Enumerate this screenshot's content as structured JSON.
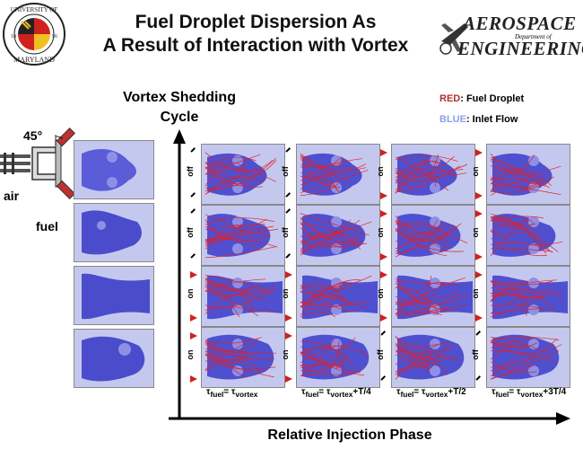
{
  "header": {
    "title_line1": "Fuel Droplet Dispersion As",
    "title_line2": "A Result of Interaction with Vortex"
  },
  "umd_logo": {
    "top_text": "UNIVERSITY OF",
    "bottom_text": "MARYLAND",
    "year_left": "18",
    "year_right": "56"
  },
  "ae_logo": {
    "line1": "AEROSPACE",
    "dept": "Department of",
    "line2": "ENGINEERING"
  },
  "legend": {
    "red_key": "RED",
    "red_desc": ": Fuel Droplet",
    "blue_key": "BLUE",
    "blue_desc": ": Inlet Flow",
    "red_color": "#b03030",
    "blue_color": "#8aa0e8"
  },
  "vortex_label": {
    "line1": "Vortex Shedding",
    "line2": "Cycle"
  },
  "injector": {
    "angle": "45°",
    "air": "air",
    "fuel": "fuel"
  },
  "x_axis_label": "Relative Injection Phase",
  "grid": {
    "rows": [
      [
        "off",
        "off",
        "on",
        "on"
      ],
      [
        "off",
        "off",
        "on",
        "on"
      ],
      [
        "on",
        "on",
        "on",
        "on"
      ],
      [
        "on",
        "on",
        "off",
        "off"
      ]
    ]
  },
  "columns": [
    {
      "sub": "fuel",
      "eq": "=",
      "sub2": "vortex",
      "suffix": ""
    },
    {
      "sub": "fuel",
      "eq": "=",
      "sub2": "vortex",
      "suffix": "+T/4"
    },
    {
      "sub": "fuel",
      "eq": "=",
      "sub2": "vortex",
      "suffix": "+T/2"
    },
    {
      "sub": "fuel",
      "eq": "=",
      "sub2": "vortex",
      "suffix": "+3T/4"
    }
  ],
  "colors": {
    "flow_dark": "#3a3fc8",
    "flow_light": "#c5c8ee",
    "droplet": "#e0202a",
    "axis": "#000000"
  }
}
